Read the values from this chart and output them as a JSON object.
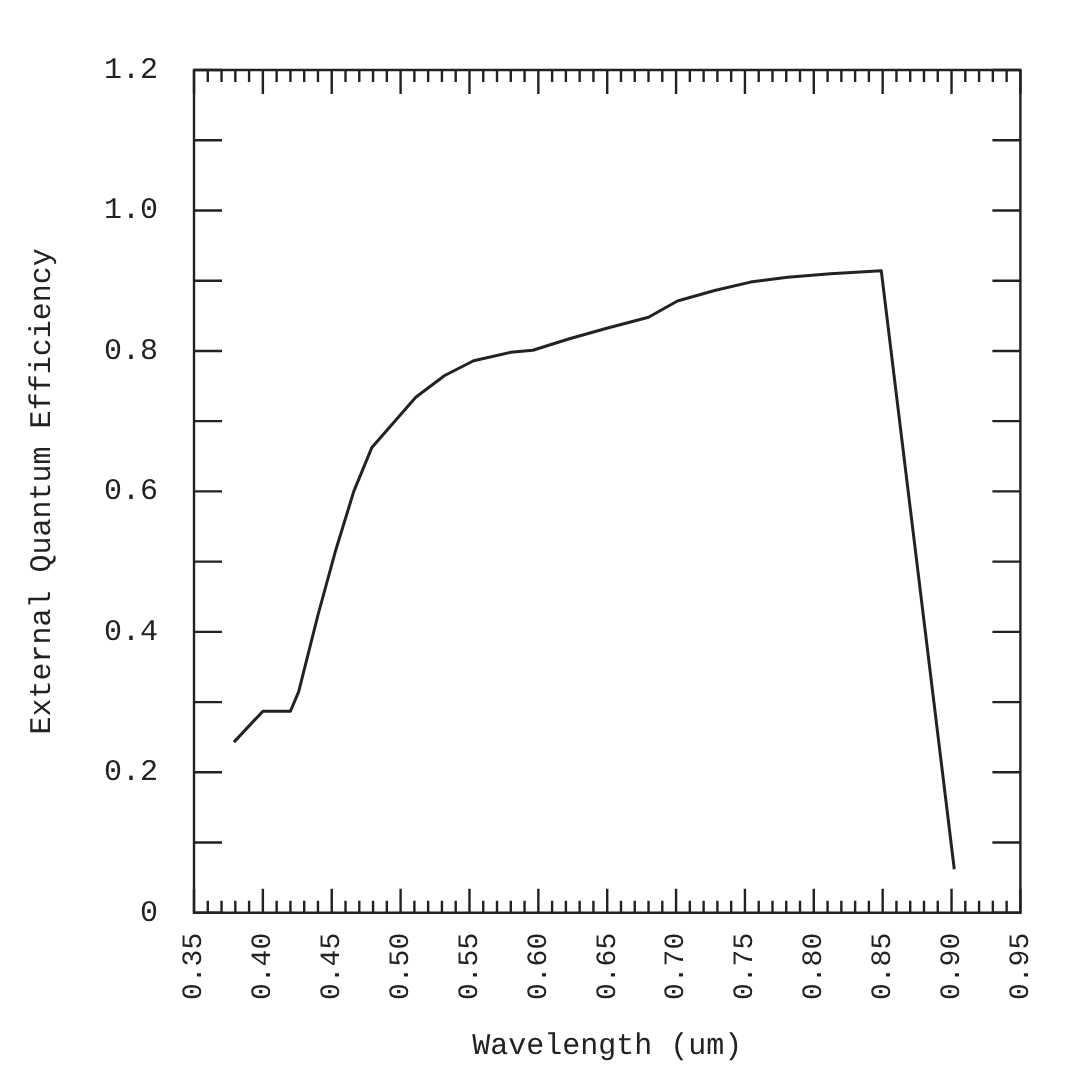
{
  "chart_data": {
    "type": "line",
    "xlabel": "Wavelength (um)",
    "ylabel": "External Quantum Efficiency",
    "x": [
      0.379,
      0.4,
      0.42,
      0.426,
      0.44,
      0.453,
      0.466,
      0.479,
      0.495,
      0.511,
      0.532,
      0.553,
      0.58,
      0.596,
      0.622,
      0.649,
      0.68,
      0.701,
      0.728,
      0.754,
      0.781,
      0.812,
      0.849,
      0.902
    ],
    "series": [
      {
        "color": "#222222",
        "values": [
          0.243,
          0.287,
          0.287,
          0.315,
          0.424,
          0.517,
          0.6,
          0.662,
          0.698,
          0.734,
          0.765,
          0.786,
          0.798,
          0.801,
          0.817,
          0.832,
          0.848,
          0.871,
          0.886,
          0.898,
          0.905,
          0.91,
          0.914,
          0.062
        ]
      }
    ],
    "xlim": [
      0.35,
      0.95
    ],
    "xticks": [
      {
        "value": 0.35,
        "label": "0.35"
      },
      {
        "value": 0.36,
        "label": null
      },
      {
        "value": 0.37,
        "label": null
      },
      {
        "value": 0.38,
        "label": null
      },
      {
        "value": 0.39,
        "label": null
      },
      {
        "value": 0.4,
        "label": "0.40"
      },
      {
        "value": 0.41,
        "label": null
      },
      {
        "value": 0.42,
        "label": null
      },
      {
        "value": 0.43,
        "label": null
      },
      {
        "value": 0.44,
        "label": null
      },
      {
        "value": 0.45,
        "label": "0.45"
      },
      {
        "value": 0.46,
        "label": null
      },
      {
        "value": 0.47,
        "label": null
      },
      {
        "value": 0.48,
        "label": null
      },
      {
        "value": 0.49,
        "label": null
      },
      {
        "value": 0.5,
        "label": "0.50"
      },
      {
        "value": 0.51,
        "label": null
      },
      {
        "value": 0.52,
        "label": null
      },
      {
        "value": 0.53,
        "label": null
      },
      {
        "value": 0.54,
        "label": null
      },
      {
        "value": 0.55,
        "label": "0.55"
      },
      {
        "value": 0.56,
        "label": null
      },
      {
        "value": 0.57,
        "label": null
      },
      {
        "value": 0.58,
        "label": null
      },
      {
        "value": 0.59,
        "label": null
      },
      {
        "value": 0.6,
        "label": "0.60"
      },
      {
        "value": 0.61,
        "label": null
      },
      {
        "value": 0.62,
        "label": null
      },
      {
        "value": 0.63,
        "label": null
      },
      {
        "value": 0.64,
        "label": null
      },
      {
        "value": 0.65,
        "label": "0.65"
      },
      {
        "value": 0.66,
        "label": null
      },
      {
        "value": 0.67,
        "label": null
      },
      {
        "value": 0.68,
        "label": null
      },
      {
        "value": 0.69,
        "label": null
      },
      {
        "value": 0.7,
        "label": "0.70"
      },
      {
        "value": 0.71,
        "label": null
      },
      {
        "value": 0.72,
        "label": null
      },
      {
        "value": 0.73,
        "label": null
      },
      {
        "value": 0.74,
        "label": null
      },
      {
        "value": 0.75,
        "label": "0.75"
      },
      {
        "value": 0.76,
        "label": null
      },
      {
        "value": 0.77,
        "label": null
      },
      {
        "value": 0.78,
        "label": null
      },
      {
        "value": 0.79,
        "label": null
      },
      {
        "value": 0.8,
        "label": "0.80"
      },
      {
        "value": 0.81,
        "label": null
      },
      {
        "value": 0.82,
        "label": null
      },
      {
        "value": 0.83,
        "label": null
      },
      {
        "value": 0.84,
        "label": null
      },
      {
        "value": 0.85,
        "label": "0.85"
      },
      {
        "value": 0.86,
        "label": null
      },
      {
        "value": 0.87,
        "label": null
      },
      {
        "value": 0.88,
        "label": null
      },
      {
        "value": 0.89,
        "label": null
      },
      {
        "value": 0.9,
        "label": "0.90"
      },
      {
        "value": 0.91,
        "label": null
      },
      {
        "value": 0.92,
        "label": null
      },
      {
        "value": 0.93,
        "label": null
      },
      {
        "value": 0.94,
        "label": null
      },
      {
        "value": 0.95,
        "label": "0.95"
      }
    ],
    "ylim": [
      0,
      1.2
    ],
    "yticks": [
      0,
      {
        "value": 0.1,
        "label": null
      },
      {
        "value": 0.2,
        "label": "0.2"
      },
      {
        "value": 0.3,
        "label": null
      },
      {
        "value": 0.4,
        "label": "0.4"
      },
      {
        "value": 0.5,
        "label": null
      },
      {
        "value": 0.6,
        "label": "0.6"
      },
      {
        "value": 0.7,
        "label": null
      },
      {
        "value": 0.8,
        "label": "0.8"
      },
      {
        "value": 0.9,
        "label": null
      },
      {
        "value": 1.0,
        "label": "1.0"
      },
      {
        "value": 1.1,
        "label": null
      },
      {
        "value": 1.2,
        "label": "1.2"
      }
    ],
    "grid": false,
    "legend": false,
    "marker": "none",
    "line_style": "solid"
  }
}
